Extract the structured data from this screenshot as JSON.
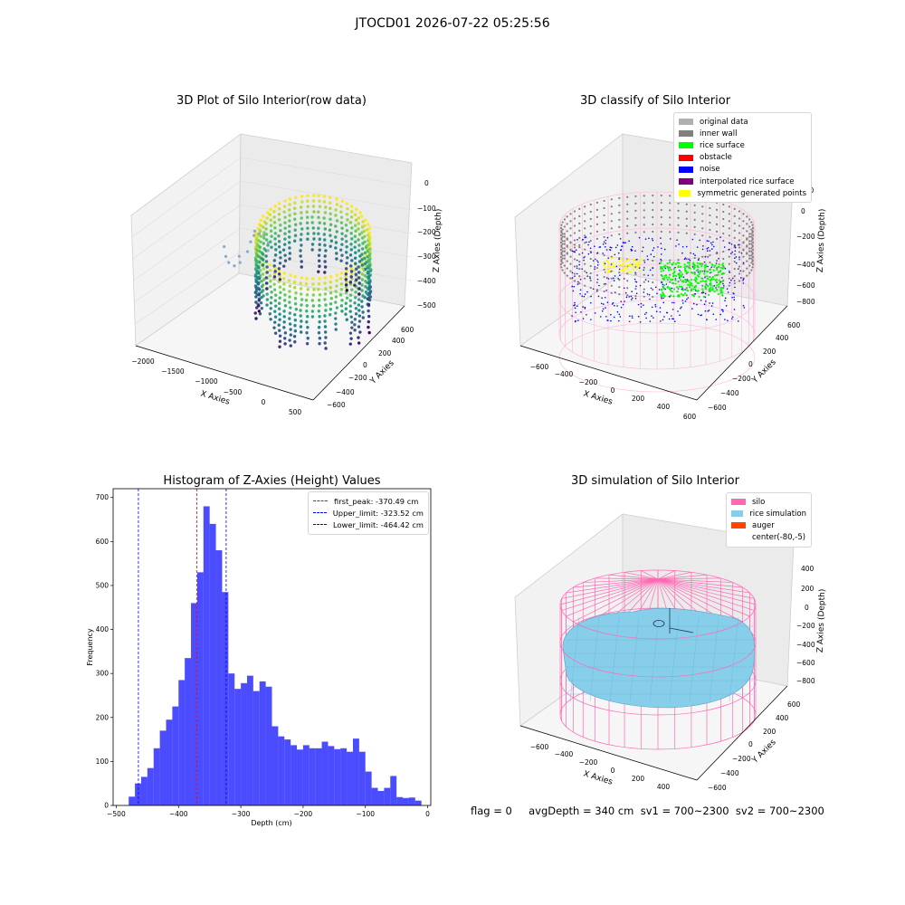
{
  "suptitle": "JTOCD01 2026-07-22 05:25:56",
  "panel1": {
    "title": "3D Plot of Silo Interior(row data)",
    "xlabel": "X Axies",
    "ylabel": "Y Axies",
    "zlabel": "Z Axies (Depth)",
    "xticks": [
      "−2000",
      "−1500",
      "−1000",
      "−500",
      "0",
      "500"
    ],
    "yticks": [
      "600",
      "400",
      "200",
      "0",
      "−200",
      "−400",
      "−600"
    ],
    "zticks": [
      "0",
      "−100",
      "−200",
      "−300",
      "−400",
      "−500"
    ]
  },
  "panel2": {
    "title": "3D classify of Silo Interior",
    "xlabel": "X Axies",
    "ylabel": "Y Axies",
    "zlabel": "Z Axies (Depth)",
    "xticks": [
      "−600",
      "−400",
      "−200",
      "0",
      "200",
      "400",
      "600"
    ],
    "yticks": [
      "600",
      "400",
      "200",
      "0",
      "−200",
      "−400",
      "−600"
    ],
    "zticks": [
      "200",
      "0",
      "−200",
      "−400",
      "−600",
      "−800"
    ],
    "legend": [
      {
        "label": "original data",
        "color": "#b0b0b0"
      },
      {
        "label": "inner wall",
        "color": "#808080"
      },
      {
        "label": "rice surface",
        "color": "#00ff00"
      },
      {
        "label": "obstacle",
        "color": "#ff0000"
      },
      {
        "label": "noise",
        "color": "#0000ff"
      },
      {
        "label": "interpolated rice surface",
        "color": "#800080"
      },
      {
        "label": "symmetric generated points",
        "color": "#ffff00"
      }
    ]
  },
  "panel4": {
    "title": "3D simulation of Silo Interior",
    "xlabel": "X Axies",
    "ylabel": "Y Axies",
    "zlabel": "Z Axies (Depth)",
    "xticks": [
      "−600",
      "−400",
      "−200",
      "0",
      "200",
      "400"
    ],
    "yticks": [
      "600",
      "400",
      "200",
      "0",
      "−200",
      "−400",
      "−600"
    ],
    "zticks": [
      "400",
      "200",
      "0",
      "−200",
      "−400",
      "−600",
      "−800"
    ],
    "legend": [
      {
        "label": "silo",
        "color": "#ff69b4"
      },
      {
        "label": "rice simulation",
        "color": "#87ceeb"
      },
      {
        "label": "auger",
        "color": "#ff4500"
      },
      {
        "label": "center(-80,-5)",
        "color": ""
      }
    ]
  },
  "bottom_text": "flag = 0     avgDepth = 340 cm  sv1 = 700~2300  sv2 = 700~2300",
  "chart_data": {
    "type": "bar",
    "title": "Histogram of Z-Axies (Height) Values",
    "xlabel": "Depth (cm)",
    "ylabel": "Frequency",
    "xlim": [
      -505,
      5
    ],
    "ylim": [
      0,
      720
    ],
    "xticks": [
      -500,
      -400,
      -300,
      -200,
      -100,
      0
    ],
    "yticks": [
      0,
      100,
      200,
      300,
      400,
      500,
      600,
      700
    ],
    "bar_color": "#0000ff",
    "bins_start": -480,
    "bin_width": 10,
    "values": [
      20,
      50,
      65,
      85,
      130,
      170,
      195,
      225,
      285,
      335,
      460,
      530,
      680,
      640,
      580,
      485,
      300,
      265,
      278,
      295,
      260,
      282,
      270,
      180,
      157,
      150,
      137,
      127,
      137,
      130,
      130,
      145,
      135,
      128,
      130,
      122,
      152,
      122,
      77,
      40,
      33,
      40,
      67,
      19,
      17,
      18,
      11
    ],
    "vlines": [
      {
        "x": -370.49,
        "label": "first_peak: -370.49 cm",
        "color": "#ff0000"
      },
      {
        "x": -323.52,
        "label": "Upper_limit: -323.52 cm",
        "color": "#0000ff"
      },
      {
        "x": -464.42,
        "label": "Lower_limit: -464.42 cm",
        "color": "#0000ff"
      }
    ]
  }
}
